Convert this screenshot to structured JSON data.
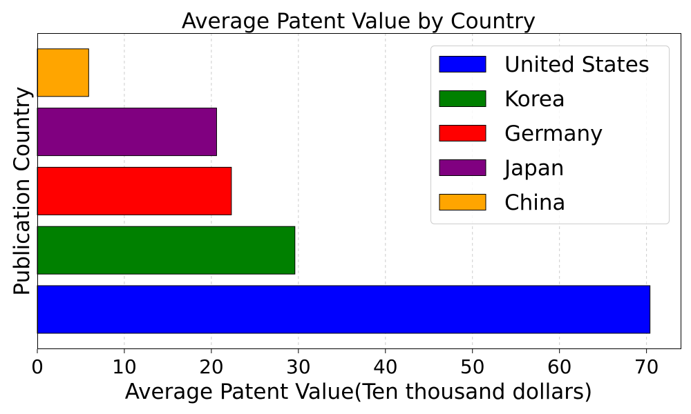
{
  "chart_data": {
    "type": "bar",
    "orientation": "horizontal",
    "title": "Average Patent Value by Country",
    "xlabel": "Average Patent Value(Ten thousand dollars)",
    "ylabel": "Publication Country",
    "xlim": [
      0,
      74
    ],
    "xticks": [
      0,
      10,
      20,
      30,
      40,
      50,
      60,
      70
    ],
    "grid": "x-dashed",
    "legend_placement": "top-right",
    "categories": [
      "United States",
      "Korea",
      "Germany",
      "Japan",
      "China"
    ],
    "values": [
      70.4,
      29.6,
      22.3,
      20.6,
      5.9
    ],
    "colors": [
      "#0000ff",
      "#008000",
      "#ff0000",
      "#800080",
      "#ffa500"
    ],
    "legend": [
      "United States",
      "Korea",
      "Germany",
      "Japan",
      "China"
    ]
  }
}
